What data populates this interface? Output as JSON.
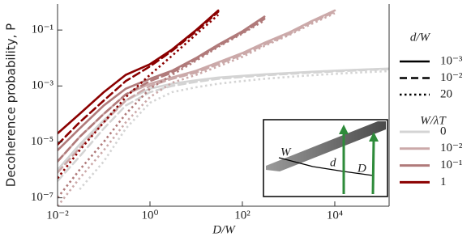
{
  "chart_data": {
    "type": "line",
    "xlabel": "D/W",
    "ylabel": "Decoherence probability, P",
    "log_x": true,
    "log_y": true,
    "xlim": [
      0.01,
      150000
    ],
    "ylim": [
      5e-08,
      0.85
    ],
    "xticks": [
      {
        "value": 0.01,
        "label": "10⁻²"
      },
      {
        "value": 1,
        "label": "10⁰"
      },
      {
        "value": 100,
        "label": "10²"
      },
      {
        "value": 10000,
        "label": "10⁴"
      }
    ],
    "yticks": [
      {
        "value": 1e-07,
        "label": "10⁻⁷"
      },
      {
        "value": 1e-05,
        "label": "10⁻⁵"
      },
      {
        "value": 0.001,
        "label": "10⁻³"
      },
      {
        "value": 0.1,
        "label": "10⁻¹"
      }
    ],
    "x": [
      0.01,
      0.03,
      0.1,
      0.3,
      1,
      3,
      10,
      30,
      100,
      300,
      1000,
      3000,
      10000,
      30000,
      150000
    ],
    "style_legend": {
      "title": "d/W",
      "entries": [
        {
          "label": "10⁻³",
          "dash": "solid"
        },
        {
          "label": "10⁻²",
          "dash": "dashed"
        },
        {
          "label": "20",
          "dash": "dotted"
        }
      ]
    },
    "color_legend": {
      "title": "W/λT",
      "entries": [
        {
          "label": "0",
          "color": "#d4d4d4"
        },
        {
          "label": "10⁻²",
          "color": "#cba9a9"
        },
        {
          "label": "10⁻¹",
          "color": "#b07a7a"
        },
        {
          "label": "1",
          "color": "#8b0000"
        }
      ]
    },
    "series": [
      {
        "color": "#d4d4d4",
        "dash": "solid",
        "values": [
          1e-06,
          8e-06,
          6e-05,
          0.0003,
          0.0008,
          0.0012,
          0.0016,
          0.002,
          0.0023,
          0.0026,
          0.0029,
          0.0032,
          0.0035,
          0.0038,
          0.0042
        ]
      },
      {
        "color": "#d4d4d4",
        "dash": "dashed",
        "values": [
          4e-07,
          3e-06,
          3e-05,
          0.0002,
          0.0006,
          0.001,
          0.0014,
          0.0018,
          0.0021,
          0.0024,
          0.0027,
          0.003,
          0.0033,
          0.0036,
          0.004
        ]
      },
      {
        "color": "#d4d4d4",
        "dash": "dotted",
        "values": [
          null,
          2e-07,
          2e-06,
          3e-05,
          0.00025,
          0.0006,
          0.0009,
          0.0012,
          0.0015,
          0.0018,
          0.0021,
          0.0024,
          0.0027,
          0.003,
          0.0034
        ]
      },
      {
        "color": "#cba9a9",
        "dash": "solid",
        "values": [
          2e-06,
          1.5e-05,
          0.0001,
          0.0005,
          0.0012,
          0.002,
          0.0035,
          0.007,
          0.015,
          0.035,
          0.08,
          0.2,
          0.5,
          null,
          null
        ]
      },
      {
        "color": "#cba9a9",
        "dash": "dashed",
        "values": [
          8e-07,
          6e-06,
          5e-05,
          0.0003,
          0.001,
          0.0018,
          0.003,
          0.006,
          0.013,
          0.03,
          0.07,
          0.18,
          0.45,
          null,
          null
        ]
      },
      {
        "color": "#cba9a9",
        "dash": "dotted",
        "values": [
          5e-08,
          5e-07,
          5e-06,
          5e-05,
          0.0004,
          0.0013,
          0.0025,
          0.005,
          0.011,
          0.027,
          0.065,
          0.16,
          0.4,
          null,
          null
        ]
      },
      {
        "color": "#b07a7a",
        "dash": "solid",
        "values": [
          5e-06,
          3e-05,
          0.0002,
          0.0008,
          0.0018,
          0.0035,
          0.01,
          0.03,
          0.09,
          0.3,
          null,
          null,
          null,
          null,
          null
        ]
      },
      {
        "color": "#b07a7a",
        "dash": "dashed",
        "values": [
          2e-06,
          1.5e-05,
          0.0001,
          0.0005,
          0.0015,
          0.003,
          0.009,
          0.027,
          0.08,
          0.25,
          null,
          null,
          null,
          null,
          null
        ]
      },
      {
        "color": "#b07a7a",
        "dash": "dotted",
        "values": [
          1e-07,
          1e-06,
          1e-05,
          0.0001,
          0.0008,
          0.0025,
          0.008,
          0.025,
          0.075,
          0.22,
          null,
          null,
          null,
          null,
          null
        ]
      },
      {
        "color": "#8b0000",
        "dash": "solid",
        "values": [
          2e-05,
          0.0001,
          0.0006,
          0.0025,
          0.006,
          0.02,
          0.1,
          0.5,
          null,
          null,
          null,
          null,
          null,
          null,
          null
        ]
      },
      {
        "color": "#8b0000",
        "dash": "dashed",
        "values": [
          8e-06,
          5e-05,
          0.0003,
          0.0015,
          0.005,
          0.018,
          0.09,
          0.45,
          null,
          null,
          null,
          null,
          null,
          null,
          null
        ]
      },
      {
        "color": "#8b0000",
        "dash": "dotted",
        "values": [
          5e-07,
          5e-06,
          5e-05,
          0.0004,
          0.0025,
          0.012,
          0.07,
          0.35,
          null,
          null,
          null,
          null,
          null,
          null,
          null
        ]
      }
    ],
    "inset": {
      "labels": [
        "W",
        "d",
        "D"
      ]
    }
  }
}
